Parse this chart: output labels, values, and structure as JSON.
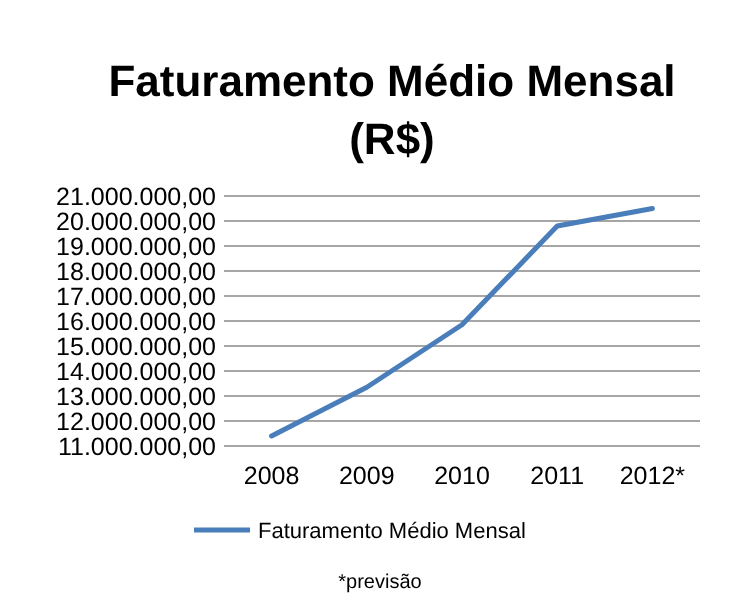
{
  "chart_data": {
    "type": "line",
    "title": "Faturamento Médio Mensal (R$)",
    "categories": [
      "2008",
      "2009",
      "2010",
      "2011",
      "2012*"
    ],
    "series": [
      {
        "name": "Faturamento Médio Mensal",
        "color": "#4a7ebb",
        "values": [
          11400000,
          13350000,
          15850000,
          19800000,
          20500000
        ]
      }
    ],
    "ylim": [
      11000000,
      21000000
    ],
    "yticks": [
      {
        "value": 11000000,
        "label": "11.000.000,00"
      },
      {
        "value": 12000000,
        "label": "12.000.000,00"
      },
      {
        "value": 13000000,
        "label": "13.000.000,00"
      },
      {
        "value": 14000000,
        "label": "14.000.000,00"
      },
      {
        "value": 15000000,
        "label": "15.000.000,00"
      },
      {
        "value": 16000000,
        "label": "16.000.000,00"
      },
      {
        "value": 17000000,
        "label": "17.000.000,00"
      },
      {
        "value": 18000000,
        "label": "18.000.000,00"
      },
      {
        "value": 19000000,
        "label": "19.000.000,00"
      },
      {
        "value": 20000000,
        "label": "20.000.000,00"
      },
      {
        "value": 21000000,
        "label": "21.000.000,00"
      }
    ],
    "grid": "y",
    "legend": "bottom",
    "marker": "none",
    "line_style": "solid",
    "annotations": [
      "*previsão"
    ]
  }
}
